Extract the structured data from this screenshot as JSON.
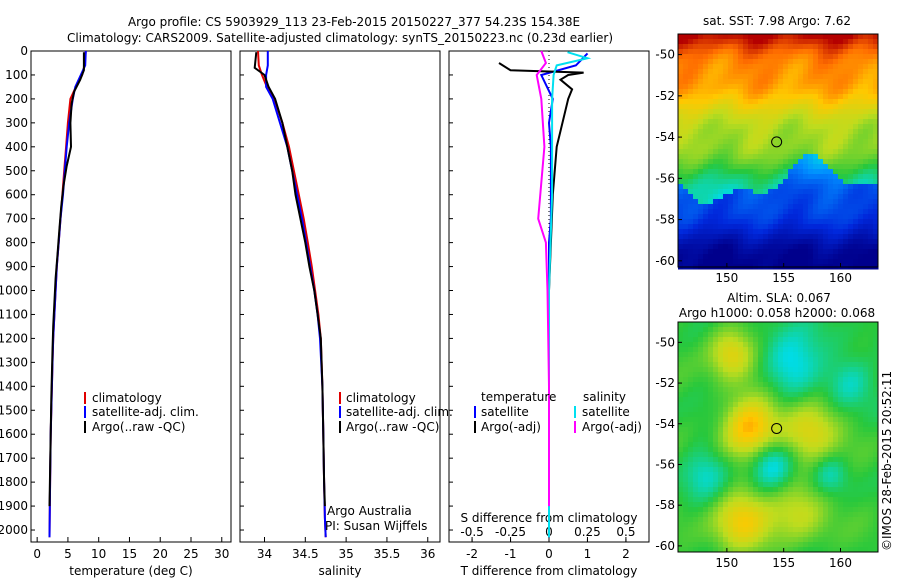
{
  "header": {
    "line1": "Argo profile: CS 5903929_113 23-Feb-2015 20150227_377 54.23S 154.38E",
    "line2": "Climatology: CARS2009. Satellite-adjusted climatology: synTS_20150223.nc (0.23d earlier)"
  },
  "colors": {
    "climatology": "#e00000",
    "satellite": "#0000ff",
    "argo": "#000000",
    "sat_salinity": "#00e0f0",
    "argo_salinity": "#ff00ff"
  },
  "legend": {
    "climatology": "climatology",
    "satellite_adj": "satellite-adj. clim.",
    "argo": "Argo(..raw -QC)",
    "temperature_head": "temperature",
    "salinity_head": "salinity",
    "satellite": "satellite",
    "argo_adj": "Argo(-adj)"
  },
  "credit": {
    "line1": "Argo Australia",
    "line2": "PI: Susan Wijffels"
  },
  "stamp": "©IMOS 28-Feb-2015 20:52:11",
  "maps": {
    "sst": {
      "title": "sat. SST: 7.98 Argo: 7.62",
      "xticks": [
        "150",
        "155",
        "160"
      ],
      "yticks": [
        "-50",
        "-52",
        "-54",
        "-56",
        "-58",
        "-60"
      ]
    },
    "sla": {
      "title1": "Altim. SLA: 0.067",
      "title2": "Argo h1000: 0.058 h2000: 0.068",
      "xticks": [
        "150",
        "155",
        "160"
      ],
      "yticks": [
        "-50",
        "-52",
        "-54",
        "-56",
        "-58",
        "-60"
      ]
    }
  },
  "chart_data": [
    {
      "type": "line",
      "id": "temperature",
      "xlabel": "temperature (deg C)",
      "xlim": [
        -1,
        31.5
      ],
      "ylim": [
        2050,
        0
      ],
      "xticks": [
        0,
        5,
        10,
        15,
        20,
        25,
        30
      ],
      "yticks": [
        0,
        100,
        200,
        300,
        400,
        500,
        600,
        700,
        800,
        900,
        1000,
        1100,
        1200,
        1300,
        1400,
        1500,
        1600,
        1700,
        1800,
        1900,
        2000
      ],
      "series": [
        {
          "name": "climatology",
          "x": [
            7.9,
            7.7,
            7.3,
            6.3,
            5.4,
            5.0,
            4.7,
            4.4,
            4.1,
            3.8,
            3.5,
            3.2,
            3.0,
            2.8,
            2.6,
            2.5,
            2.4,
            2.3,
            2.2,
            2.1,
            2.0
          ],
          "y": [
            0,
            60,
            100,
            150,
            200,
            300,
            400,
            500,
            600,
            700,
            800,
            900,
            1000,
            1100,
            1200,
            1300,
            1400,
            1500,
            1600,
            1800,
            2030
          ]
        },
        {
          "name": "satellite-adj. clim.",
          "x": [
            7.9,
            7.8,
            7.1,
            6.2,
            5.8,
            5.2,
            4.8,
            4.5,
            4.2,
            3.8,
            3.5,
            3.2,
            3.0,
            2.8,
            2.6,
            2.5,
            2.4,
            2.3,
            2.2,
            2.1,
            2.0
          ],
          "y": [
            0,
            60,
            100,
            150,
            200,
            300,
            400,
            500,
            600,
            700,
            800,
            900,
            1000,
            1100,
            1200,
            1300,
            1400,
            1500,
            1600,
            1800,
            2030
          ]
        },
        {
          "name": "Argo(..raw -QC)",
          "x": [
            7.6,
            7.6,
            7.0,
            6.0,
            5.6,
            5.4,
            5.5,
            4.8,
            4.3,
            3.9,
            3.6,
            3.3,
            3.0,
            2.8,
            2.6,
            2.5,
            2.4,
            2.3,
            2.2,
            2.1,
            2.0
          ],
          "y": [
            5,
            80,
            120,
            170,
            220,
            300,
            400,
            480,
            560,
            650,
            750,
            850,
            950,
            1050,
            1150,
            1250,
            1350,
            1450,
            1600,
            1750,
            1900
          ]
        }
      ]
    },
    {
      "type": "line",
      "id": "salinity",
      "xlabel": "salinity",
      "xlim": [
        33.7,
        36.15
      ],
      "ylim": [
        2050,
        0
      ],
      "xticks": [
        34,
        34.5,
        35,
        35.5,
        36
      ],
      "series": [
        {
          "name": "climatology",
          "x": [
            33.92,
            33.93,
            33.97,
            34.03,
            34.12,
            34.22,
            34.3,
            34.36,
            34.42,
            34.48,
            34.53,
            34.58,
            34.62,
            34.66,
            34.69,
            34.71,
            34.72,
            34.73,
            34.74,
            34.75
          ],
          "y": [
            0,
            60,
            100,
            150,
            200,
            300,
            400,
            500,
            600,
            700,
            800,
            900,
            1000,
            1100,
            1200,
            1400,
            1600,
            1800,
            1950,
            2030
          ]
        },
        {
          "name": "satellite-adj. clim.",
          "x": [
            34.04,
            34.04,
            34.02,
            34.02,
            34.1,
            34.19,
            34.28,
            34.34,
            34.4,
            34.46,
            34.51,
            34.56,
            34.61,
            34.65,
            34.68,
            34.71,
            34.72,
            34.73,
            34.74,
            34.75
          ],
          "y": [
            0,
            60,
            100,
            150,
            200,
            300,
            400,
            500,
            600,
            700,
            800,
            900,
            1000,
            1100,
            1200,
            1400,
            1600,
            1800,
            1950,
            2030
          ]
        },
        {
          "name": "Argo(..raw -QC)",
          "x": [
            33.9,
            33.88,
            34.0,
            34.05,
            34.13,
            34.22,
            34.28,
            34.34,
            34.38,
            34.44,
            34.5,
            34.55,
            34.61,
            34.65,
            34.69,
            34.71,
            34.72,
            34.73,
            34.74
          ],
          "y": [
            5,
            70,
            100,
            150,
            200,
            300,
            400,
            500,
            600,
            700,
            800,
            900,
            1000,
            1100,
            1200,
            1400,
            1600,
            1800,
            1900
          ]
        }
      ]
    },
    {
      "type": "line",
      "id": "difference",
      "xlabel": "T difference from climatology",
      "xlabel_top": "S difference from climatology",
      "xlim": [
        -2.6,
        2.6
      ],
      "ylim": [
        2050,
        0
      ],
      "xticks": [
        -2,
        -1,
        0,
        1,
        2
      ],
      "xticks_s": [
        -0.5,
        -0.25,
        0,
        0.25,
        0.5
      ],
      "series": [
        {
          "name": "temperature satellite",
          "x": [
            1.0,
            0.7,
            -0.2,
            0.1,
            0.0,
            0.05,
            0.05,
            0.05,
            0.05,
            0.0,
            0.0,
            0.0,
            0.0,
            0.0,
            0.0
          ],
          "y": [
            10,
            60,
            100,
            200,
            300,
            400,
            500,
            600,
            700,
            800,
            1000,
            1200,
            1500,
            1800,
            2030
          ]
        },
        {
          "name": "temperature Argo(-adj)",
          "x": [
            -1.3,
            -1.0,
            0.9,
            0.5,
            0.3,
            0.6,
            0.5,
            0.2,
            0.1,
            0.05,
            0.0,
            0.0,
            0.0,
            0.0,
            0.0,
            0.0,
            0.0
          ],
          "y": [
            50,
            80,
            90,
            100,
            120,
            160,
            200,
            400,
            600,
            800,
            1000,
            1100,
            1200,
            1400,
            1600,
            1800,
            1900
          ]
        },
        {
          "name": "salinity satellite",
          "x": [
            0.12,
            0.25,
            0.05,
            0.03,
            0.02,
            0.02,
            0.02,
            0.01,
            0.0,
            0.0,
            0.0,
            0.0,
            0.0
          ],
          "y": [
            5,
            30,
            60,
            100,
            200,
            400,
            600,
            800,
            1000,
            1200,
            1500,
            1800,
            2030
          ]
        },
        {
          "name": "salinity Argo(-adj)",
          "x": [
            -0.05,
            -0.02,
            -0.08,
            -0.05,
            -0.03,
            -0.07,
            -0.02,
            -0.01,
            0.0,
            0.0
          ],
          "y": [
            0,
            50,
            100,
            200,
            400,
            700,
            800,
            1000,
            1400,
            1900
          ]
        }
      ]
    }
  ]
}
